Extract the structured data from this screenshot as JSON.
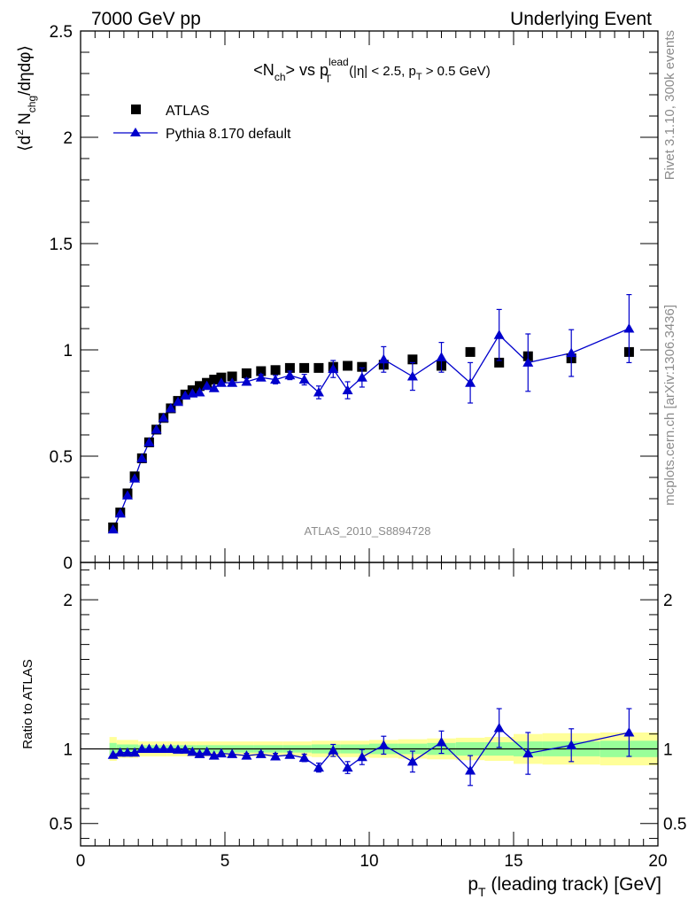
{
  "header": {
    "left": "7000 GeV pp",
    "right": "Underlying Event"
  },
  "side_text": {
    "top": "Rivet 3.1.10,  300k events",
    "bottom": "mcplots.cern.ch [arXiv:1306.3436]"
  },
  "colors": {
    "data": "#000000",
    "mc": "#0000cc",
    "band_outer": "#ffff99",
    "band_inner": "#99ff99"
  },
  "chart_data": {
    "type": "scatter",
    "title": {
      "nch": "<N",
      "ch_sub": "ch",
      "vs": "> vs p",
      "lead_sup": "lead",
      "t_sub": "T",
      "cut_open": "(|η| < 2.5, p",
      "cut_t": "T",
      "cut_close": " > 0.5 GeV)"
    },
    "analysis_label": "ATLAS_2010_S8894728",
    "ylabel": {
      "open": "⟨d",
      "sup2": "2",
      "n": " N",
      "sub": "chg",
      "close": "/dηdφ⟩"
    },
    "xlabel": {
      "p": "p",
      "sub": "T",
      "rest": " (leading track) [GeV]"
    },
    "ratio_ylabel": "Ratio to ATLAS",
    "xlim": [
      0,
      20
    ],
    "ylim": [
      0,
      2.5
    ],
    "ratio_ylim": [
      0.35,
      2.25
    ],
    "x_ticks": [
      "0",
      "5",
      "10",
      "15",
      "20"
    ],
    "y_ticks": [
      "0",
      "0.5",
      "1",
      "1.5",
      "2",
      "2.5"
    ],
    "ratio_ticks": [
      "0.5",
      "1",
      "2"
    ],
    "legend": {
      "data": "ATLAS",
      "mc": "Pythia 8.170 default"
    },
    "x": [
      1.125,
      1.375,
      1.625,
      1.875,
      2.125,
      2.375,
      2.625,
      2.875,
      3.125,
      3.375,
      3.625,
      3.875,
      4.125,
      4.375,
      4.625,
      4.875,
      5.25,
      5.75,
      6.25,
      6.75,
      7.25,
      7.75,
      8.25,
      8.75,
      9.25,
      9.75,
      10.5,
      11.5,
      12.5,
      13.5,
      14.5,
      15.5,
      17.0,
      19.0
    ],
    "series": [
      {
        "name": "ATLAS",
        "values": [
          0.165,
          0.235,
          0.325,
          0.405,
          0.49,
          0.565,
          0.625,
          0.68,
          0.725,
          0.76,
          0.79,
          0.81,
          0.83,
          0.845,
          0.86,
          0.87,
          0.875,
          0.89,
          0.9,
          0.905,
          0.915,
          0.915,
          0.915,
          0.92,
          0.925,
          0.92,
          0.93,
          0.955,
          0.925,
          0.99,
          0.94,
          0.97,
          0.96,
          0.99
        ]
      },
      {
        "name": "Pythia 8.170 default",
        "values": [
          0.155,
          0.23,
          0.315,
          0.395,
          0.49,
          0.565,
          0.625,
          0.68,
          0.725,
          0.755,
          0.785,
          0.795,
          0.8,
          0.83,
          0.82,
          0.845,
          0.845,
          0.85,
          0.87,
          0.86,
          0.88,
          0.86,
          0.8,
          0.91,
          0.81,
          0.87,
          0.955,
          0.875,
          0.965,
          0.845,
          1.07,
          0.94,
          0.985,
          1.1
        ],
        "errors": [
          0.005,
          0.005,
          0.005,
          0.005,
          0.005,
          0.005,
          0.005,
          0.005,
          0.005,
          0.005,
          0.005,
          0.005,
          0.01,
          0.01,
          0.01,
          0.01,
          0.01,
          0.015,
          0.015,
          0.02,
          0.02,
          0.025,
          0.03,
          0.04,
          0.04,
          0.045,
          0.06,
          0.065,
          0.07,
          0.095,
          0.12,
          0.135,
          0.11,
          0.16
        ]
      }
    ],
    "ratio_values": [
      0.96,
      0.975,
      0.975,
      0.975,
      1.0,
      1.0,
      1.0,
      1.0,
      1.0,
      0.995,
      0.995,
      0.98,
      0.965,
      0.98,
      0.955,
      0.97,
      0.965,
      0.955,
      0.965,
      0.95,
      0.96,
      0.94,
      0.875,
      0.99,
      0.875,
      0.945,
      1.025,
      0.915,
      1.045,
      0.855,
      1.14,
      0.97,
      1.025,
      1.11
    ],
    "ratio_errors": [
      0.005,
      0.005,
      0.005,
      0.005,
      0.005,
      0.005,
      0.005,
      0.005,
      0.005,
      0.005,
      0.005,
      0.005,
      0.01,
      0.01,
      0.01,
      0.01,
      0.01,
      0.015,
      0.015,
      0.02,
      0.02,
      0.025,
      0.03,
      0.04,
      0.04,
      0.05,
      0.06,
      0.07,
      0.075,
      0.1,
      0.13,
      0.14,
      0.11,
      0.16
    ],
    "ratio_band": {
      "edges": [
        1.0,
        1.25,
        2.0,
        3.0,
        4.0,
        5.0,
        6.0,
        7.0,
        8.0,
        9.0,
        10.0,
        11.0,
        12.0,
        13.0,
        14.0,
        15.0,
        16.0,
        18.0,
        20.0
      ],
      "outer": [
        0.08,
        0.06,
        0.05,
        0.05,
        0.05,
        0.05,
        0.05,
        0.05,
        0.055,
        0.055,
        0.06,
        0.065,
        0.07,
        0.075,
        0.08,
        0.1,
        0.105,
        0.11
      ],
      "inner": [
        0.04,
        0.03,
        0.025,
        0.025,
        0.025,
        0.025,
        0.025,
        0.025,
        0.03,
        0.03,
        0.035,
        0.035,
        0.04,
        0.045,
        0.045,
        0.05,
        0.05,
        0.055
      ]
    }
  }
}
